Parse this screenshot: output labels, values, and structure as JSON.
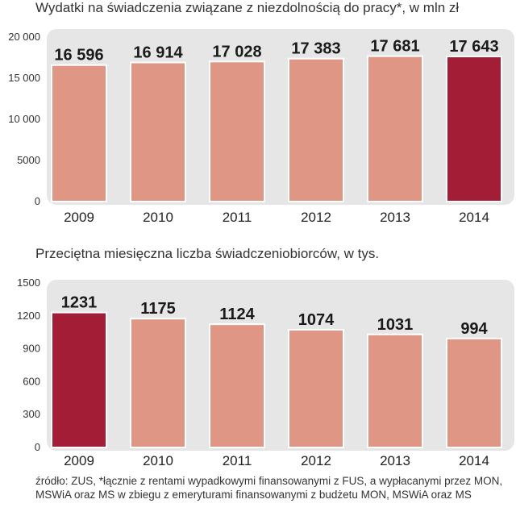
{
  "chart_data": [
    {
      "type": "bar",
      "title": "Wydatki na świadczenia związane z niezdolnością do pracy*, w mln zł",
      "categories": [
        "2009",
        "2010",
        "2011",
        "2012",
        "2013",
        "2014"
      ],
      "values": [
        16596,
        16914,
        17028,
        17383,
        17681,
        17643
      ],
      "value_labels": [
        "16 596",
        "16 914",
        "17 028",
        "17 383",
        "17 681",
        "17 643"
      ],
      "yticks": [
        0,
        5000,
        10000,
        15000,
        20000
      ],
      "ytick_labels": [
        "0",
        "5000",
        "10 000",
        "15 000",
        "20 000"
      ],
      "ylim": [
        0,
        20000
      ],
      "highlight_index": 5,
      "xlabel": "",
      "ylabel": ""
    },
    {
      "type": "bar",
      "title": "Przeciętna miesięczna liczba świadczeniobiorców, w tys.",
      "categories": [
        "2009",
        "2010",
        "2011",
        "2012",
        "2013",
        "2014"
      ],
      "values": [
        1231,
        1175,
        1124,
        1074,
        1031,
        994
      ],
      "value_labels": [
        "1231",
        "1175",
        "1124",
        "1074",
        "1031",
        "994"
      ],
      "yticks": [
        0,
        300,
        600,
        900,
        1200,
        1500
      ],
      "ytick_labels": [
        "0",
        "300",
        "600",
        "900",
        "1200",
        "1500"
      ],
      "ylim": [
        0,
        1500
      ],
      "highlight_index": 0,
      "xlabel": "",
      "ylabel": ""
    }
  ],
  "colors": {
    "bar": "#df9684",
    "highlight": "#a31d36",
    "panel": "#e6e6e6",
    "bar_outline": "#ffffff"
  },
  "source": "źródło: ZUS, *łącznie z rentami wypadkowymi finansowanymi z FUS, a wypłacanymi przez MON, MSWiA oraz MS w zbiegu z emeryturami finansowanymi z budżetu MON, MSWiA oraz MS"
}
